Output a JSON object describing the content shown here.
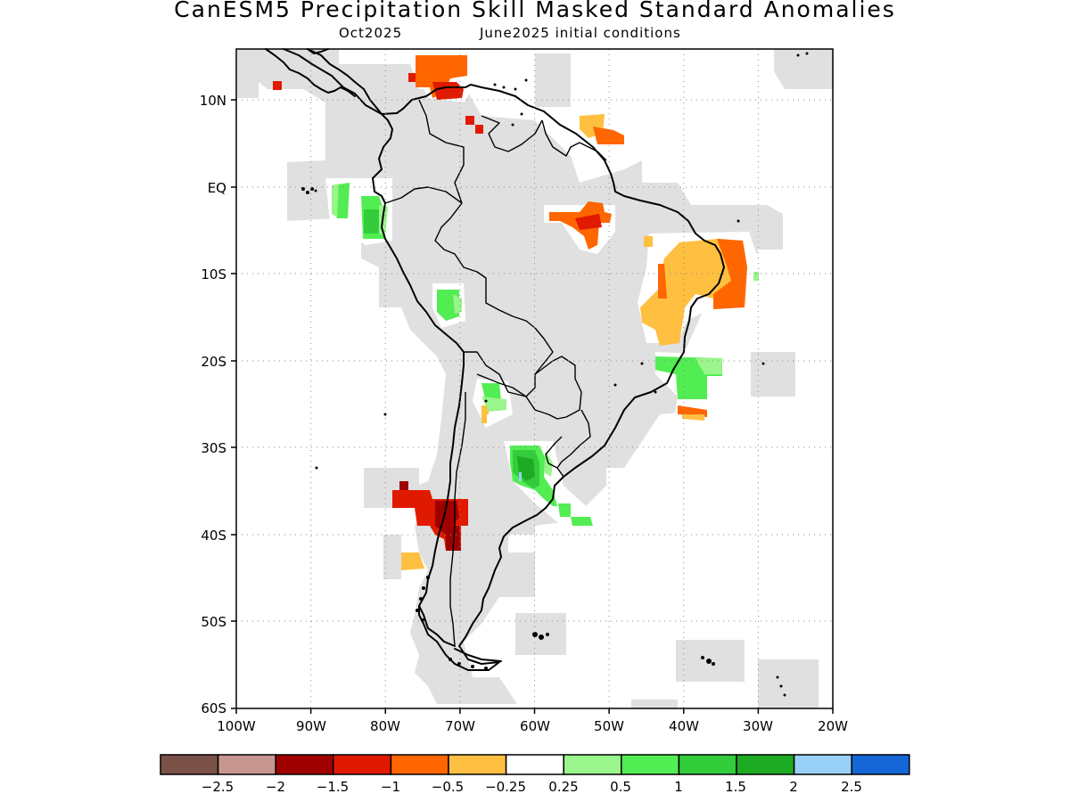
{
  "title": "CanESM5 Precipitation Skill Masked Standard Anomalies",
  "subtitle_left": "Oct2025",
  "subtitle_right": "June2025 initial conditions",
  "map": {
    "region": "South America",
    "lat_labels": [
      "10N",
      "EQ",
      "10S",
      "20S",
      "30S",
      "40S",
      "50S",
      "60S"
    ],
    "lon_labels": [
      "100W",
      "90W",
      "80W",
      "70W",
      "60W",
      "50W",
      "40W",
      "30W",
      "20W"
    ],
    "grid": "dotted"
  },
  "colorbar": {
    "colors": [
      "#7a5147",
      "#c9968f",
      "#a00000",
      "#e01a00",
      "#ff6600",
      "#ffbf40",
      "#ffffff",
      "#99f58c",
      "#52ed52",
      "#33cc3b",
      "#1eab24",
      "#99d0f7",
      "#1566d6"
    ],
    "labels": [
      "−2.5",
      "−2",
      "−1.5",
      "−1",
      "−0.5",
      "−0.25",
      "0.25",
      "0.5",
      "1",
      "1.5",
      "2",
      "2.5"
    ]
  },
  "colors": {
    "masked_skill": "#e0e0e0",
    "coastline": "#000000"
  }
}
